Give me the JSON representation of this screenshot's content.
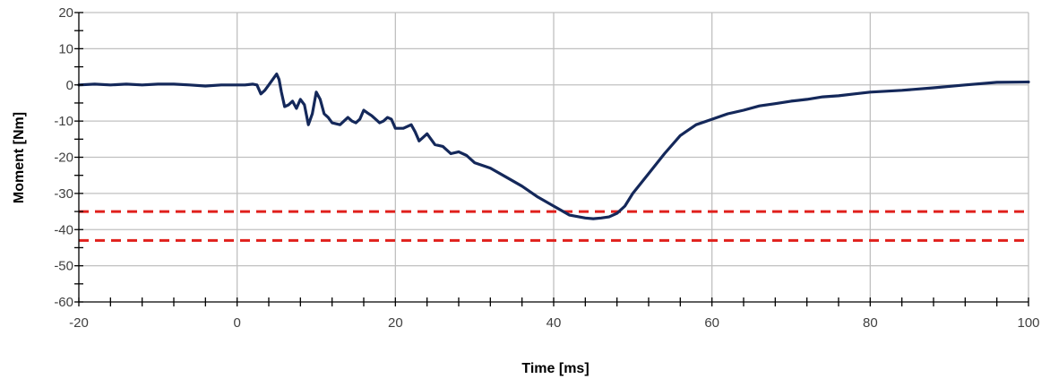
{
  "chart_data": {
    "type": "line",
    "title": "",
    "xlabel": "Time [ms]",
    "ylabel": "Moment [Nm]",
    "xlim": [
      -20,
      100
    ],
    "ylim": [
      -60,
      20
    ],
    "x_ticks": [
      "-20",
      "0",
      "20",
      "40",
      "60",
      "80",
      "100"
    ],
    "y_ticks": [
      "20",
      "10",
      "0",
      "-10",
      "-20",
      "-30",
      "-40",
      "-50",
      "-60"
    ],
    "grid": true,
    "colors": {
      "series": "#14285a",
      "threshold": "#e0201c",
      "grid": "#c0c0c0"
    },
    "series": [
      {
        "x": [
          -20,
          -18,
          -16,
          -14,
          -12,
          -10,
          -8,
          -6,
          -4,
          -2,
          0,
          1,
          2,
          2.5,
          3,
          3.5,
          4,
          4.5,
          5,
          5.3,
          5.6,
          6,
          6.5,
          7,
          7.5,
          8,
          8.5,
          9,
          9.5,
          10,
          10.5,
          11,
          11.5,
          12,
          13,
          14,
          14.5,
          15,
          15.5,
          16,
          16.5,
          17,
          17.5,
          18,
          18.5,
          19,
          19.5,
          20,
          21,
          22,
          22.5,
          23,
          23.5,
          24,
          25,
          26,
          27,
          28,
          29,
          30,
          32,
          34,
          36,
          38,
          40,
          42,
          44,
          45,
          46,
          47,
          48,
          49,
          50,
          52,
          54,
          56,
          58,
          60,
          62,
          64,
          66,
          68,
          70,
          72,
          74,
          76,
          78,
          80,
          84,
          88,
          92,
          96,
          100
        ],
        "values": [
          0,
          0.2,
          0,
          0.2,
          0,
          0.2,
          0.2,
          0,
          -0.3,
          0,
          0,
          0,
          0.2,
          0,
          -2.5,
          -1.5,
          0,
          1.5,
          3,
          1.5,
          -2,
          -6,
          -5.5,
          -4.5,
          -6.5,
          -4,
          -5.5,
          -11,
          -8,
          -2,
          -4,
          -8,
          -9,
          -10.5,
          -11,
          -9,
          -10,
          -10.5,
          -9.5,
          -7,
          -7.8,
          -8.5,
          -9.5,
          -10.5,
          -10,
          -9,
          -9.5,
          -12,
          -12,
          -11,
          -13,
          -15.5,
          -14.5,
          -13.5,
          -16.5,
          -17,
          -19,
          -18.5,
          -19.5,
          -21.5,
          -23,
          -25.5,
          -28,
          -31,
          -33.5,
          -36,
          -36.8,
          -37,
          -36.8,
          -36.5,
          -35.5,
          -33.5,
          -30,
          -24.5,
          -19,
          -14,
          -11,
          -9.5,
          -8,
          -7,
          -5.8,
          -5.2,
          -4.5,
          -4,
          -3.3,
          -3,
          -2.5,
          -2,
          -1.5,
          -0.8,
          0,
          0.7,
          0.8
        ]
      }
    ],
    "threshold_lines": [
      -35,
      -43
    ]
  }
}
